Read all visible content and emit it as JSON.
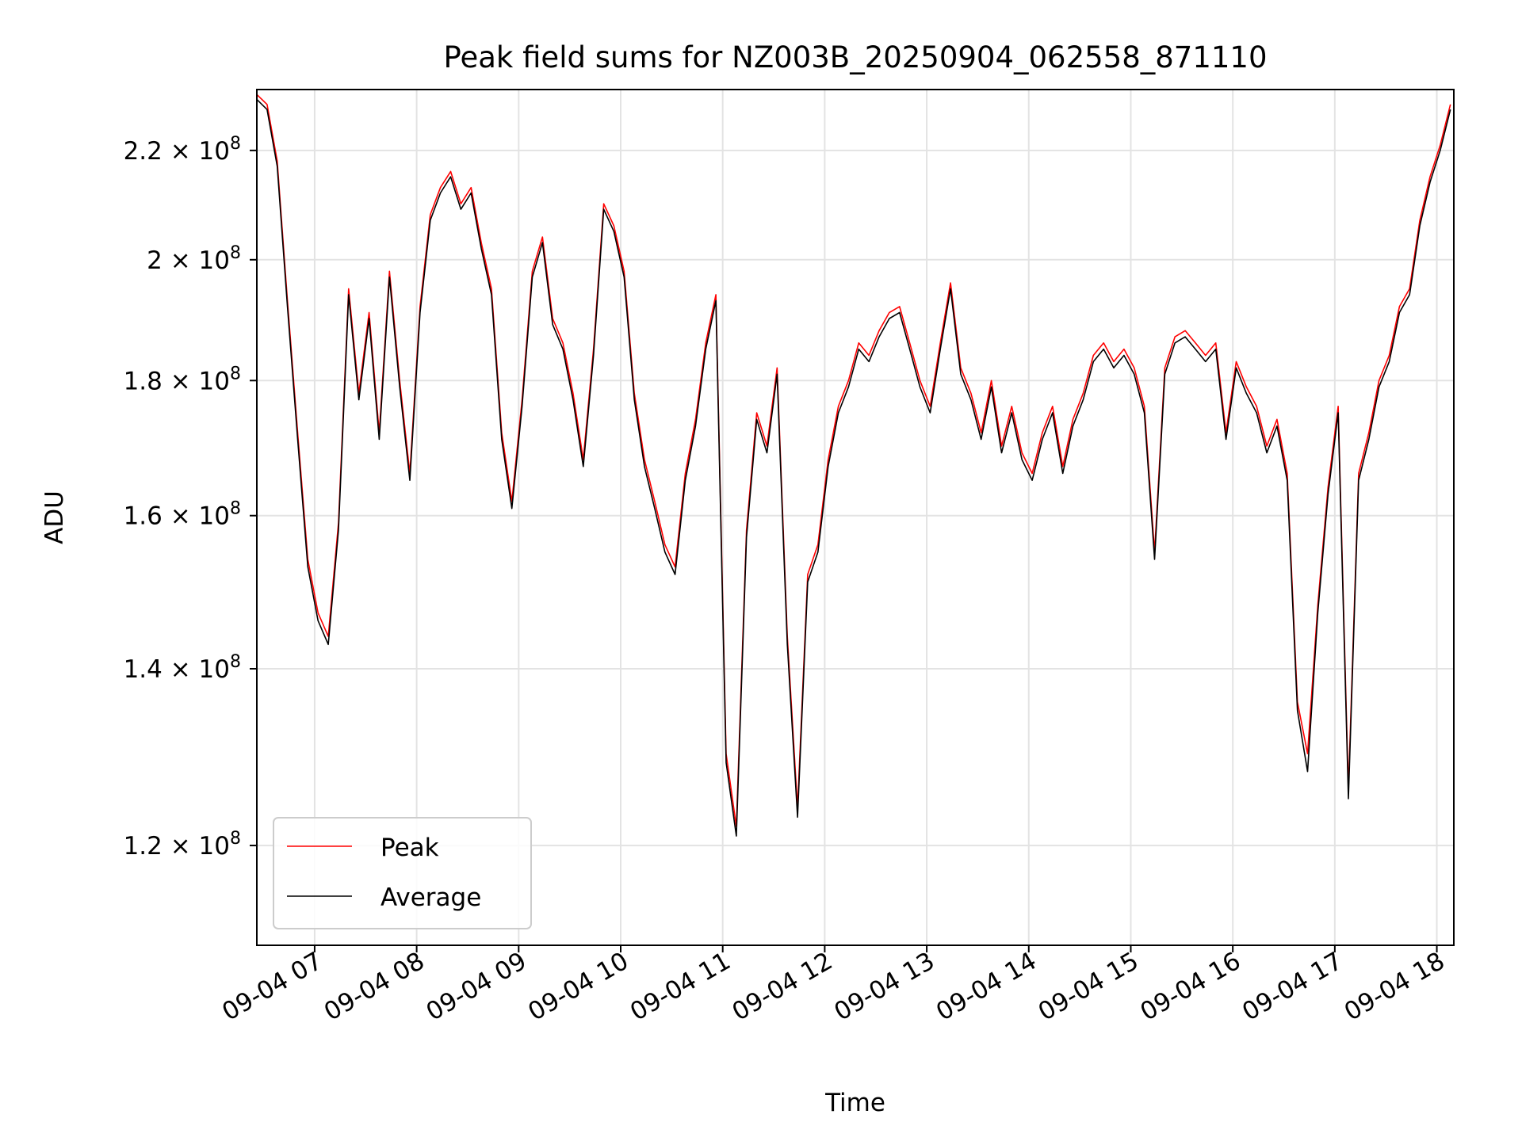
{
  "chart_data": {
    "type": "line",
    "title": "Peak field sums for NZ003B_20250904_062558_871110",
    "xlabel": "Time",
    "ylabel": "ADU",
    "y_scale": "log",
    "ylim": [
      110000000.0,
      232000000.0
    ],
    "xlim": [
      "2025-09-04 06:26",
      "2025-09-04 18:10"
    ],
    "grid": true,
    "legend_position": "lower-left",
    "x_ticks": [
      {
        "t": "2025-09-04 07:00",
        "label": "09-04 07"
      },
      {
        "t": "2025-09-04 08:00",
        "label": "09-04 08"
      },
      {
        "t": "2025-09-04 09:00",
        "label": "09-04 09"
      },
      {
        "t": "2025-09-04 10:00",
        "label": "09-04 10"
      },
      {
        "t": "2025-09-04 11:00",
        "label": "09-04 11"
      },
      {
        "t": "2025-09-04 12:00",
        "label": "09-04 12"
      },
      {
        "t": "2025-09-04 13:00",
        "label": "09-04 13"
      },
      {
        "t": "2025-09-04 14:00",
        "label": "09-04 14"
      },
      {
        "t": "2025-09-04 15:00",
        "label": "09-04 15"
      },
      {
        "t": "2025-09-04 16:00",
        "label": "09-04 16"
      },
      {
        "t": "2025-09-04 17:00",
        "label": "09-04 17"
      },
      {
        "t": "2025-09-04 18:00",
        "label": "09-04 18"
      }
    ],
    "y_ticks": [
      {
        "value": 120000000.0,
        "mantissa": "1.2",
        "exp": "8"
      },
      {
        "value": 140000000.0,
        "mantissa": "1.4",
        "exp": "8"
      },
      {
        "value": 160000000.0,
        "mantissa": "1.6",
        "exp": "8"
      },
      {
        "value": 180000000.0,
        "mantissa": "1.8",
        "exp": "8"
      },
      {
        "value": 200000000.0,
        "mantissa": "2",
        "exp": "8"
      },
      {
        "value": 220000000.0,
        "mantissa": "2.2",
        "exp": "8"
      }
    ],
    "series": [
      {
        "name": "Peak",
        "color": "#ff0000",
        "x": [
          "2025-09-04 06:26",
          "2025-09-04 06:32",
          "2025-09-04 06:38",
          "2025-09-04 06:44",
          "2025-09-04 06:50",
          "2025-09-04 06:56",
          "2025-09-04 07:02",
          "2025-09-04 07:08",
          "2025-09-04 07:14",
          "2025-09-04 07:20",
          "2025-09-04 07:26",
          "2025-09-04 07:32",
          "2025-09-04 07:38",
          "2025-09-04 07:44",
          "2025-09-04 07:50",
          "2025-09-04 07:56",
          "2025-09-04 08:02",
          "2025-09-04 08:08",
          "2025-09-04 08:14",
          "2025-09-04 08:20",
          "2025-09-04 08:26",
          "2025-09-04 08:32",
          "2025-09-04 08:38",
          "2025-09-04 08:44",
          "2025-09-04 08:50",
          "2025-09-04 08:56",
          "2025-09-04 09:02",
          "2025-09-04 09:08",
          "2025-09-04 09:14",
          "2025-09-04 09:20",
          "2025-09-04 09:26",
          "2025-09-04 09:32",
          "2025-09-04 09:38",
          "2025-09-04 09:44",
          "2025-09-04 09:50",
          "2025-09-04 09:56",
          "2025-09-04 10:02",
          "2025-09-04 10:08",
          "2025-09-04 10:14",
          "2025-09-04 10:20",
          "2025-09-04 10:26",
          "2025-09-04 10:32",
          "2025-09-04 10:38",
          "2025-09-04 10:44",
          "2025-09-04 10:50",
          "2025-09-04 10:56",
          "2025-09-04 11:02",
          "2025-09-04 11:08",
          "2025-09-04 11:14",
          "2025-09-04 11:20",
          "2025-09-04 11:26",
          "2025-09-04 11:32",
          "2025-09-04 11:38",
          "2025-09-04 11:44",
          "2025-09-04 11:50",
          "2025-09-04 11:56",
          "2025-09-04 12:02",
          "2025-09-04 12:08",
          "2025-09-04 12:14",
          "2025-09-04 12:20",
          "2025-09-04 12:26",
          "2025-09-04 12:32",
          "2025-09-04 12:38",
          "2025-09-04 12:44",
          "2025-09-04 12:50",
          "2025-09-04 12:56",
          "2025-09-04 13:02",
          "2025-09-04 13:08",
          "2025-09-04 13:14",
          "2025-09-04 13:20",
          "2025-09-04 13:26",
          "2025-09-04 13:32",
          "2025-09-04 13:38",
          "2025-09-04 13:44",
          "2025-09-04 13:50",
          "2025-09-04 13:56",
          "2025-09-04 14:02",
          "2025-09-04 14:08",
          "2025-09-04 14:14",
          "2025-09-04 14:20",
          "2025-09-04 14:26",
          "2025-09-04 14:32",
          "2025-09-04 14:38",
          "2025-09-04 14:44",
          "2025-09-04 14:50",
          "2025-09-04 14:56",
          "2025-09-04 15:02",
          "2025-09-04 15:08",
          "2025-09-04 15:14",
          "2025-09-04 15:20",
          "2025-09-04 15:26",
          "2025-09-04 15:32",
          "2025-09-04 15:38",
          "2025-09-04 15:44",
          "2025-09-04 15:50",
          "2025-09-04 15:56",
          "2025-09-04 16:02",
          "2025-09-04 16:08",
          "2025-09-04 16:14",
          "2025-09-04 16:20",
          "2025-09-04 16:26",
          "2025-09-04 16:32",
          "2025-09-04 16:38",
          "2025-09-04 16:44",
          "2025-09-04 16:50",
          "2025-09-04 16:56",
          "2025-09-04 17:02",
          "2025-09-04 17:08",
          "2025-09-04 17:14",
          "2025-09-04 17:20",
          "2025-09-04 17:26",
          "2025-09-04 17:32",
          "2025-09-04 17:38",
          "2025-09-04 17:44",
          "2025-09-04 17:50",
          "2025-09-04 17:56",
          "2025-09-04 18:02",
          "2025-09-04 18:08"
        ],
        "y": [
          231000000.0,
          229000000.0,
          218000000.0,
          193000000.0,
          172000000.0,
          154000000.0,
          147000000.0,
          144000000.0,
          159000000.0,
          195000000.0,
          178000000.0,
          191000000.0,
          172000000.0,
          198000000.0,
          180000000.0,
          166000000.0,
          192000000.0,
          208000000.0,
          213000000.0,
          216000000.0,
          210000000.0,
          213000000.0,
          203000000.0,
          195000000.0,
          172000000.0,
          162000000.0,
          177000000.0,
          198000000.0,
          204000000.0,
          190000000.0,
          186000000.0,
          178000000.0,
          168000000.0,
          185000000.0,
          210000000.0,
          206000000.0,
          198000000.0,
          178000000.0,
          168000000.0,
          162000000.0,
          156000000.0,
          153000000.0,
          166000000.0,
          174000000.0,
          186000000.0,
          194000000.0,
          130000000.0,
          122000000.0,
          158000000.0,
          175000000.0,
          170000000.0,
          182000000.0,
          144000000.0,
          124000000.0,
          152000000.0,
          156000000.0,
          168000000.0,
          176000000.0,
          180000000.0,
          186000000.0,
          184000000.0,
          188000000.0,
          191000000.0,
          192000000.0,
          186000000.0,
          180000000.0,
          176000000.0,
          186000000.0,
          196000000.0,
          182000000.0,
          178000000.0,
          172000000.0,
          180000000.0,
          170000000.0,
          176000000.0,
          169000000.0,
          166000000.0,
          172000000.0,
          176000000.0,
          167000000.0,
          174000000.0,
          178000000.0,
          184000000.0,
          186000000.0,
          183000000.0,
          185000000.0,
          182000000.0,
          176000000.0,
          155000000.0,
          182000000.0,
          187000000.0,
          188000000.0,
          186000000.0,
          184000000.0,
          186000000.0,
          172000000.0,
          183000000.0,
          179000000.0,
          176000000.0,
          170000000.0,
          174000000.0,
          166000000.0,
          136000000.0,
          130000000.0,
          148000000.0,
          164000000.0,
          176000000.0,
          126000000.0,
          166000000.0,
          172000000.0,
          180000000.0,
          184000000.0,
          192000000.0,
          195000000.0,
          207000000.0,
          215000000.0,
          221000000.0,
          229000000.0
        ]
      },
      {
        "name": "Average",
        "color": "#000000",
        "x": [
          "2025-09-04 06:26",
          "2025-09-04 06:32",
          "2025-09-04 06:38",
          "2025-09-04 06:44",
          "2025-09-04 06:50",
          "2025-09-04 06:56",
          "2025-09-04 07:02",
          "2025-09-04 07:08",
          "2025-09-04 07:14",
          "2025-09-04 07:20",
          "2025-09-04 07:26",
          "2025-09-04 07:32",
          "2025-09-04 07:38",
          "2025-09-04 07:44",
          "2025-09-04 07:50",
          "2025-09-04 07:56",
          "2025-09-04 08:02",
          "2025-09-04 08:08",
          "2025-09-04 08:14",
          "2025-09-04 08:20",
          "2025-09-04 08:26",
          "2025-09-04 08:32",
          "2025-09-04 08:38",
          "2025-09-04 08:44",
          "2025-09-04 08:50",
          "2025-09-04 08:56",
          "2025-09-04 09:02",
          "2025-09-04 09:08",
          "2025-09-04 09:14",
          "2025-09-04 09:20",
          "2025-09-04 09:26",
          "2025-09-04 09:32",
          "2025-09-04 09:38",
          "2025-09-04 09:44",
          "2025-09-04 09:50",
          "2025-09-04 09:56",
          "2025-09-04 10:02",
          "2025-09-04 10:08",
          "2025-09-04 10:14",
          "2025-09-04 10:20",
          "2025-09-04 10:26",
          "2025-09-04 10:32",
          "2025-09-04 10:38",
          "2025-09-04 10:44",
          "2025-09-04 10:50",
          "2025-09-04 10:56",
          "2025-09-04 11:02",
          "2025-09-04 11:08",
          "2025-09-04 11:14",
          "2025-09-04 11:20",
          "2025-09-04 11:26",
          "2025-09-04 11:32",
          "2025-09-04 11:38",
          "2025-09-04 11:44",
          "2025-09-04 11:50",
          "2025-09-04 11:56",
          "2025-09-04 12:02",
          "2025-09-04 12:08",
          "2025-09-04 12:14",
          "2025-09-04 12:20",
          "2025-09-04 12:26",
          "2025-09-04 12:32",
          "2025-09-04 12:38",
          "2025-09-04 12:44",
          "2025-09-04 12:50",
          "2025-09-04 12:56",
          "2025-09-04 13:02",
          "2025-09-04 13:08",
          "2025-09-04 13:14",
          "2025-09-04 13:20",
          "2025-09-04 13:26",
          "2025-09-04 13:32",
          "2025-09-04 13:38",
          "2025-09-04 13:44",
          "2025-09-04 13:50",
          "2025-09-04 13:56",
          "2025-09-04 14:02",
          "2025-09-04 14:08",
          "2025-09-04 14:14",
          "2025-09-04 14:20",
          "2025-09-04 14:26",
          "2025-09-04 14:32",
          "2025-09-04 14:38",
          "2025-09-04 14:44",
          "2025-09-04 14:50",
          "2025-09-04 14:56",
          "2025-09-04 15:02",
          "2025-09-04 15:08",
          "2025-09-04 15:14",
          "2025-09-04 15:20",
          "2025-09-04 15:26",
          "2025-09-04 15:32",
          "2025-09-04 15:38",
          "2025-09-04 15:44",
          "2025-09-04 15:50",
          "2025-09-04 15:56",
          "2025-09-04 16:02",
          "2025-09-04 16:08",
          "2025-09-04 16:14",
          "2025-09-04 16:20",
          "2025-09-04 16:26",
          "2025-09-04 16:32",
          "2025-09-04 16:38",
          "2025-09-04 16:44",
          "2025-09-04 16:50",
          "2025-09-04 16:56",
          "2025-09-04 17:02",
          "2025-09-04 17:08",
          "2025-09-04 17:14",
          "2025-09-04 17:20",
          "2025-09-04 17:26",
          "2025-09-04 17:32",
          "2025-09-04 17:38",
          "2025-09-04 17:44",
          "2025-09-04 17:50",
          "2025-09-04 17:56",
          "2025-09-04 18:02",
          "2025-09-04 18:08"
        ],
        "y": [
          230000000.0,
          228000000.0,
          217000000.0,
          192000000.0,
          171000000.0,
          153000000.0,
          146000000.0,
          143000000.0,
          158000000.0,
          194000000.0,
          177000000.0,
          190000000.0,
          171000000.0,
          197000000.0,
          179000000.0,
          165000000.0,
          191000000.0,
          207000000.0,
          212000000.0,
          215000000.0,
          209000000.0,
          212000000.0,
          202000000.0,
          194000000.0,
          171000000.0,
          161000000.0,
          176000000.0,
          197000000.0,
          203000000.0,
          189000000.0,
          185000000.0,
          177000000.0,
          167000000.0,
          184000000.0,
          209000000.0,
          205000000.0,
          197000000.0,
          177000000.0,
          167000000.0,
          161000000.0,
          155000000.0,
          152000000.0,
          165000000.0,
          173000000.0,
          185000000.0,
          193000000.0,
          129000000.0,
          121000000.0,
          157000000.0,
          174000000.0,
          169000000.0,
          181000000.0,
          143000000.0,
          123000000.0,
          151000000.0,
          155000000.0,
          167000000.0,
          175000000.0,
          179000000.0,
          185000000.0,
          183000000.0,
          187000000.0,
          190000000.0,
          191000000.0,
          185000000.0,
          179000000.0,
          175000000.0,
          185000000.0,
          195000000.0,
          181000000.0,
          177000000.0,
          171000000.0,
          179000000.0,
          169000000.0,
          175000000.0,
          168000000.0,
          165000000.0,
          171000000.0,
          175000000.0,
          166000000.0,
          173000000.0,
          177000000.0,
          183000000.0,
          185000000.0,
          182000000.0,
          184000000.0,
          181000000.0,
          175000000.0,
          154000000.0,
          181000000.0,
          186000000.0,
          187000000.0,
          185000000.0,
          183000000.0,
          185000000.0,
          171000000.0,
          182000000.0,
          178000000.0,
          175000000.0,
          169000000.0,
          173000000.0,
          165000000.0,
          135000000.0,
          128000000.0,
          147000000.0,
          163000000.0,
          175000000.0,
          125000000.0,
          165000000.0,
          171000000.0,
          179000000.0,
          183000000.0,
          191000000.0,
          194000000.0,
          206000000.0,
          214000000.0,
          220000000.0,
          228000000.0
        ]
      }
    ]
  }
}
